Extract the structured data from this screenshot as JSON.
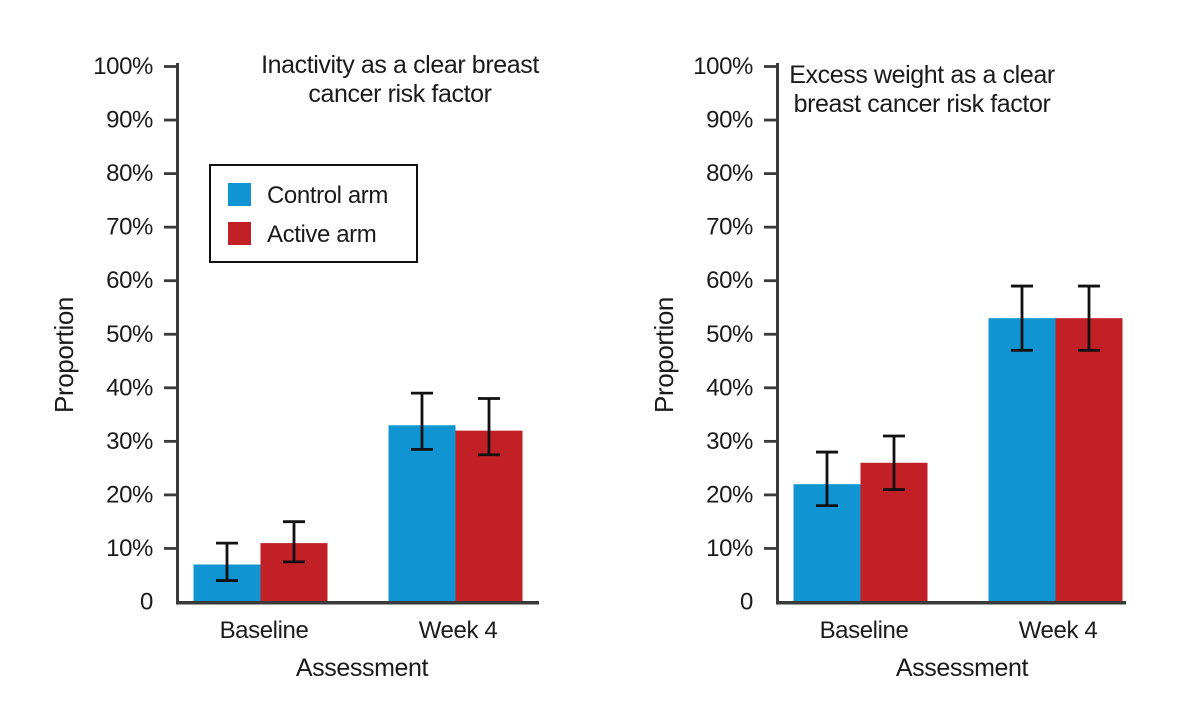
{
  "figure": {
    "background": "#ffffff",
    "text_color": "#1a1a1a",
    "axis_color": "#3a3a3a",
    "error_bar_color": "#111111"
  },
  "series_colors": {
    "control": "#1094d2",
    "active": "#c22027"
  },
  "legend": {
    "items": [
      {
        "label": "Control arm",
        "key": "control"
      },
      {
        "label": "Active arm",
        "key": "active"
      }
    ],
    "position": "upper-left boxed, left chart only"
  },
  "chart_data": [
    {
      "type": "bar",
      "title_lines": [
        "Inactivity as a clear breast",
        "cancer risk factor"
      ],
      "xlabel": "Assessment",
      "ylabel": "Proportion",
      "categories": [
        "Baseline",
        "Week 4"
      ],
      "y_tick_labels": [
        "0",
        "10%",
        "20%",
        "30%",
        "40%",
        "50%",
        "60%",
        "70%",
        "80%",
        "90%",
        "100%"
      ],
      "ylim": [
        0,
        100
      ],
      "grid": false,
      "legend_shown": true,
      "series": [
        {
          "name": "Control arm",
          "key": "control",
          "values": [
            7,
            33
          ],
          "error_low": [
            4,
            28.5
          ],
          "error_high": [
            11,
            39
          ]
        },
        {
          "name": "Active arm",
          "key": "active",
          "values": [
            11,
            32
          ],
          "error_low": [
            7.5,
            27.5
          ],
          "error_high": [
            15,
            38
          ]
        }
      ]
    },
    {
      "type": "bar",
      "title_lines": [
        "Excess weight as a clear",
        "breast cancer risk factor"
      ],
      "xlabel": "Assessment",
      "ylabel": "Proportion",
      "categories": [
        "Baseline",
        "Week 4"
      ],
      "y_tick_labels": [
        "0",
        "10%",
        "20%",
        "30%",
        "40%",
        "50%",
        "60%",
        "70%",
        "80%",
        "90%",
        "100%"
      ],
      "ylim": [
        0,
        100
      ],
      "grid": false,
      "legend_shown": false,
      "series": [
        {
          "name": "Control arm",
          "key": "control",
          "values": [
            22,
            53
          ],
          "error_low": [
            18,
            47
          ],
          "error_high": [
            28,
            59
          ]
        },
        {
          "name": "Active arm",
          "key": "active",
          "values": [
            26,
            53
          ],
          "error_low": [
            21,
            47
          ],
          "error_high": [
            31,
            59
          ]
        }
      ]
    }
  ]
}
